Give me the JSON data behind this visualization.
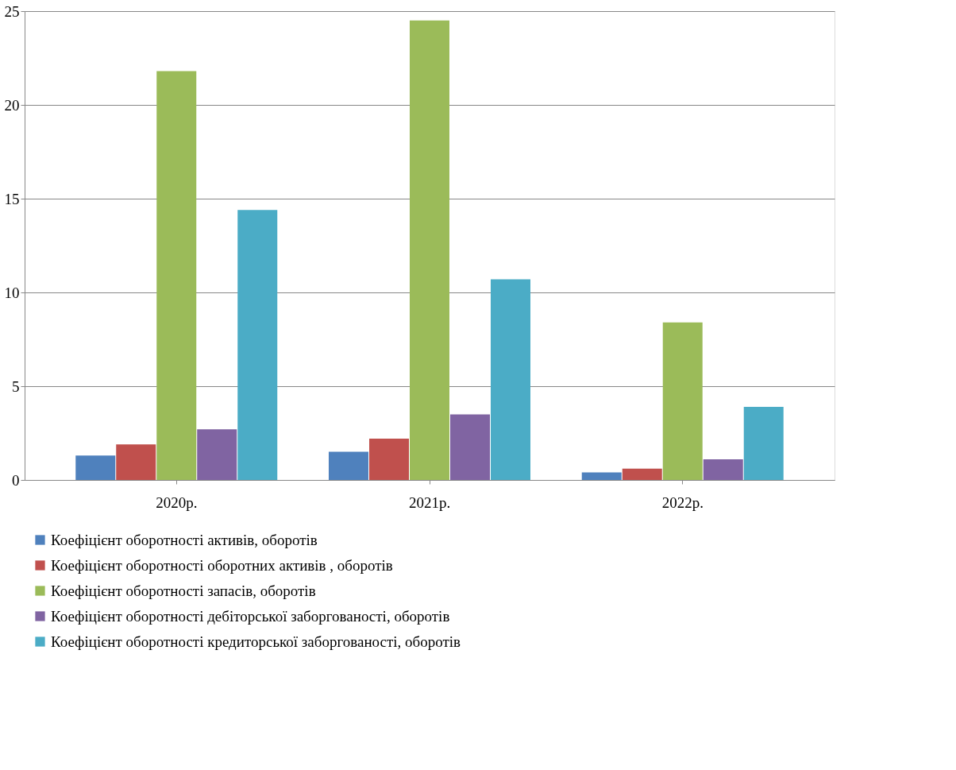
{
  "chart_data": {
    "type": "bar",
    "categories": [
      "2020р.",
      "2021р.",
      "2022р."
    ],
    "series": [
      {
        "name": "Коефіцієнт оборотності активів, оборотів",
        "color": "#4f81bd",
        "values": [
          1.3,
          1.5,
          0.4
        ]
      },
      {
        "name": "Коефіцієнт оборотності оборотних активів , оборотів",
        "color": "#c0504d",
        "values": [
          1.9,
          2.2,
          0.6
        ]
      },
      {
        "name": "Коефіцієнт оборотності запасів, оборотів",
        "color": "#9bbb59",
        "values": [
          21.8,
          24.5,
          8.4
        ]
      },
      {
        "name": "Коефіцієнт оборотності дебіторської заборгованості, оборотів",
        "color": "#8064a2",
        "values": [
          2.7,
          3.5,
          1.1
        ]
      },
      {
        "name": "Коефіцієнт оборотності кредиторської заборгованості, оборотів",
        "color": "#4bacc6",
        "values": [
          14.4,
          10.7,
          3.9
        ]
      }
    ],
    "ylim": [
      0,
      25
    ],
    "yticks": [
      0,
      5,
      10,
      15,
      20,
      25
    ],
    "grid": "y",
    "legend": "bottom"
  }
}
